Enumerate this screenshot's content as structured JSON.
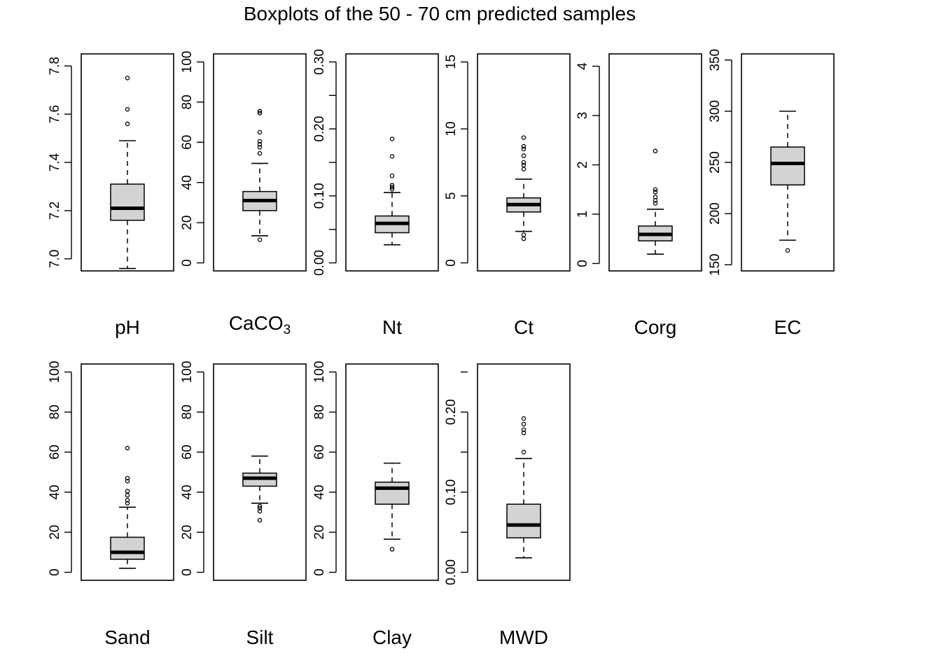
{
  "chart_data": {
    "type": "boxplot",
    "title": "Boxplots of the 50 - 70 cm predicted samples",
    "colors": {
      "box_fill": "#d3d3d3",
      "stroke": "#000000",
      "background": "#ffffff"
    },
    "panels": [
      {
        "label": "pH",
        "ylim": [
          6.95,
          7.85
        ],
        "ticks": [
          "7.0",
          "7.2",
          "7.4",
          "7.6",
          "7.8"
        ],
        "tick_values": [
          7.0,
          7.2,
          7.4,
          7.6,
          7.8
        ],
        "whisker_low": 6.96,
        "q1": 7.16,
        "median": 7.21,
        "q3": 7.31,
        "whisker_high": 7.49,
        "outliers": [
          7.56,
          7.62,
          7.75
        ]
      },
      {
        "label": "CaCO",
        "label_sub": "3",
        "ylim": [
          -4,
          104
        ],
        "ticks": [
          "0",
          "20",
          "40",
          "60",
          "80",
          "100"
        ],
        "tick_values": [
          0,
          20,
          40,
          60,
          80,
          100
        ],
        "whisker_low": 13.5,
        "q1": 26,
        "median": 31,
        "q3": 35.5,
        "whisker_high": 49.5,
        "outliers": [
          11.5,
          54.5,
          57.5,
          59,
          60.5,
          65,
          74.5,
          75.5
        ]
      },
      {
        "label": "Nt",
        "ylim": [
          -0.012,
          0.312
        ],
        "ticks": [
          "0.00",
          "0.10",
          "0.20",
          "0.30"
        ],
        "tick_values": [
          0.0,
          0.1,
          0.2,
          0.3
        ],
        "minor_ticks": [
          0.05,
          0.15,
          0.25
        ],
        "whisker_low": 0.027,
        "q1": 0.045,
        "median": 0.059,
        "q3": 0.07,
        "whisker_high": 0.105,
        "outliers": [
          0.11,
          0.113,
          0.116,
          0.13,
          0.159,
          0.185
        ]
      },
      {
        "label": "Ct",
        "ylim": [
          -0.6,
          15.6
        ],
        "ticks": [
          "0",
          "5",
          "10",
          "15"
        ],
        "tick_values": [
          0,
          5,
          10,
          15
        ],
        "whisker_low": 2.35,
        "q1": 3.8,
        "median": 4.35,
        "q3": 4.85,
        "whisker_high": 6.25,
        "outliers": [
          1.8,
          2.1,
          7.0,
          7.3,
          7.5,
          8.0,
          8.5,
          8.7,
          9.35
        ]
      },
      {
        "label": "Corg",
        "ylim": [
          -0.15,
          4.25
        ],
        "ticks": [
          "0",
          "1",
          "2",
          "3",
          "4"
        ],
        "tick_values": [
          0,
          1,
          2,
          3,
          4
        ],
        "whisker_low": 0.19,
        "q1": 0.46,
        "median": 0.59,
        "q3": 0.76,
        "whisker_high": 1.1,
        "outliers": [
          1.22,
          1.28,
          1.35,
          1.45,
          1.5,
          2.28
        ]
      },
      {
        "label": "EC",
        "ylim": [
          144,
          356
        ],
        "ticks": [
          "150",
          "200",
          "250",
          "300",
          "350"
        ],
        "tick_values": [
          150,
          200,
          250,
          300,
          350
        ],
        "whisker_low": 174,
        "q1": 228,
        "median": 249,
        "q3": 265,
        "whisker_high": 300,
        "outliers": [
          164
        ]
      },
      {
        "label": "Sand",
        "ylim": [
          -4,
          104
        ],
        "ticks": [
          "0",
          "20",
          "40",
          "60",
          "80",
          "100"
        ],
        "tick_values": [
          0,
          20,
          40,
          60,
          80,
          100
        ],
        "whisker_low": 2,
        "q1": 6.5,
        "median": 10,
        "q3": 17.5,
        "whisker_high": 32.5,
        "outliers": [
          34.5,
          36,
          38.5,
          40.5,
          45.5,
          47,
          62
        ]
      },
      {
        "label": "Silt",
        "ylim": [
          -4,
          104
        ],
        "ticks": [
          "0",
          "20",
          "40",
          "60",
          "80",
          "100"
        ],
        "tick_values": [
          0,
          20,
          40,
          60,
          80,
          100
        ],
        "whisker_low": 34.5,
        "q1": 43,
        "median": 47,
        "q3": 49.5,
        "whisker_high": 58,
        "outliers": [
          26,
          30.5,
          32,
          33
        ]
      },
      {
        "label": "Clay",
        "ylim": [
          -4,
          104
        ],
        "ticks": [
          "0",
          "20",
          "40",
          "60",
          "80",
          "100"
        ],
        "tick_values": [
          0,
          20,
          40,
          60,
          80,
          100
        ],
        "whisker_low": 16.5,
        "q1": 34,
        "median": 42,
        "q3": 45,
        "whisker_high": 54.5,
        "outliers": [
          11.5
        ]
      },
      {
        "label": "MWD",
        "ylim": [
          -0.01,
          0.26
        ],
        "ticks": [
          "0.00",
          "0.10",
          "0.20"
        ],
        "tick_values": [
          0.0,
          0.1,
          0.2
        ],
        "minor_ticks": [
          0.05,
          0.15,
          0.25
        ],
        "whisker_low": 0.018,
        "q1": 0.043,
        "median": 0.059,
        "q3": 0.085,
        "whisker_high": 0.142,
        "outliers": [
          0.15,
          0.174,
          0.178,
          0.185,
          0.192
        ]
      }
    ]
  }
}
